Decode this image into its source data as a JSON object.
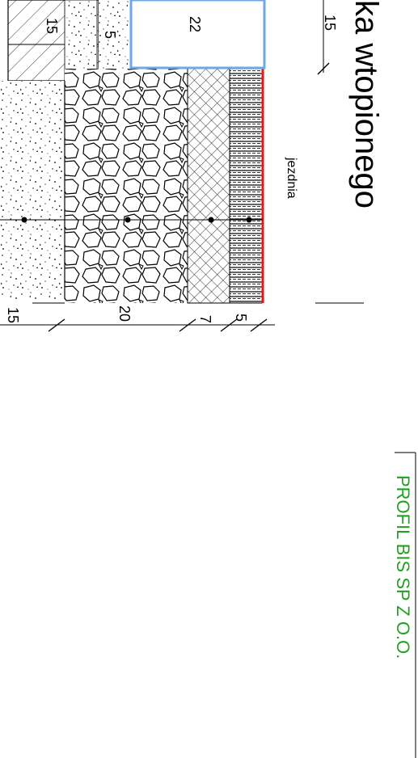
{
  "title": "ka wtopionego",
  "road_label": "jezdnia",
  "profile_label": "PROFIL BIS SP Z O.O.",
  "dimensions": {
    "curb_top": "15",
    "curb_inner": "15",
    "curb_gap": "5",
    "curb_width": "22",
    "layer_sand": "15",
    "layer_stone": "20",
    "layer_base": "7",
    "layer_asphalt": "5"
  },
  "colors": {
    "curb_outline": "#6fa8e6",
    "road_edge": "#e01818",
    "profile_text": "#1fa11f"
  }
}
